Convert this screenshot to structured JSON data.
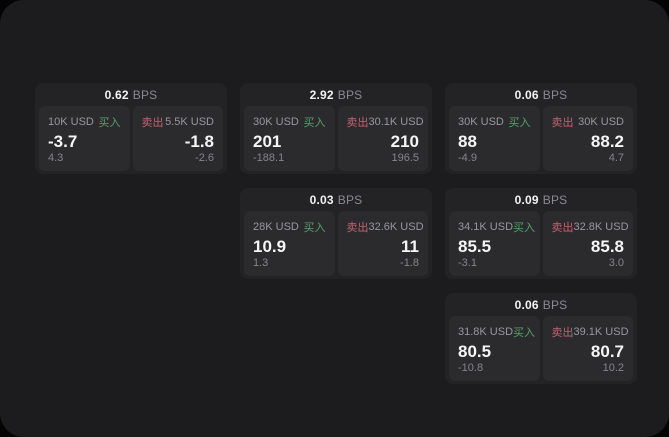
{
  "labels": {
    "bps": "BPS",
    "buy": "买入",
    "sell": "卖出"
  },
  "colors": {
    "background": "#1c1c1e",
    "card": "#232325",
    "panel": "#2b2b2d",
    "buy": "#55a16c",
    "sell": "#c46071"
  },
  "cards": [
    {
      "bps": "0.62",
      "buy": {
        "size": "10K USD",
        "price": "-3.7",
        "change": "4.3"
      },
      "sell": {
        "size": "5.5K USD",
        "price": "-1.8",
        "change": "-2.6"
      }
    },
    {
      "bps": "2.92",
      "buy": {
        "size": "30K USD",
        "price": "201",
        "change": "-188.1"
      },
      "sell": {
        "size": "30.1K USD",
        "price": "210",
        "change": "196.5"
      }
    },
    {
      "bps": "0.06",
      "buy": {
        "size": "30K USD",
        "price": "88",
        "change": "-4.9"
      },
      "sell": {
        "size": "30K USD",
        "price": "88.2",
        "change": "4.7"
      }
    },
    {
      "bps": "0.03",
      "buy": {
        "size": "28K USD",
        "price": "10.9",
        "change": "1.3"
      },
      "sell": {
        "size": "32.6K USD",
        "price": "11",
        "change": "-1.8"
      }
    },
    {
      "bps": "0.09",
      "buy": {
        "size": "34.1K USD",
        "price": "85.5",
        "change": "-3.1"
      },
      "sell": {
        "size": "32.8K USD",
        "price": "85.8",
        "change": "3.0"
      }
    },
    {
      "bps": "0.06",
      "buy": {
        "size": "31.8K USD",
        "price": "80.5",
        "change": "-10.8"
      },
      "sell": {
        "size": "39.1K USD",
        "price": "80.7",
        "change": "10.2"
      }
    }
  ]
}
